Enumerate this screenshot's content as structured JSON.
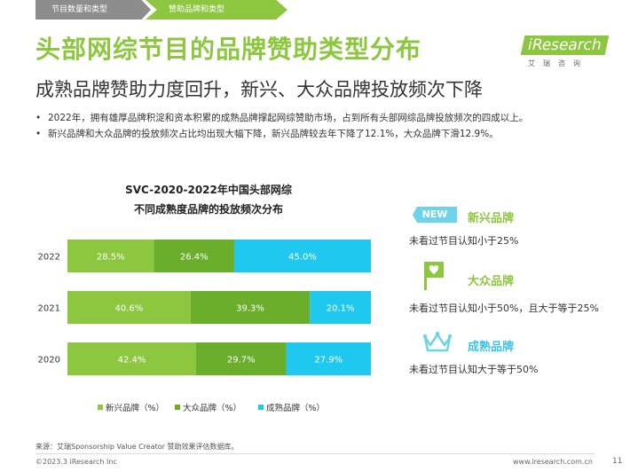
{
  "tabs": [
    "节目数量和类型",
    "赞助品牌和类型"
  ],
  "title": "头部网综节目的品牌赞助类型分布",
  "subtitle": "成熟品牌赞助力度回升，新兴、大众品牌投放频次下降",
  "logo": {
    "text": "iResearch",
    "sub": "艾瑞咨询"
  },
  "bullets": [
    "2022年，拥有雄厚品牌积淀和资本积累的成熟品牌撑起网综赞助市场，占到所有头部网综品牌投放频次的四成以上。",
    "新兴品牌和大众品牌的投放频次占比均出现大幅下降，新兴品牌较去年下降了12.1%，大众品牌下滑12.9%。"
  ],
  "chart_title_line1": "SVC-2020-2022年中国头部网综",
  "chart_title_line2": "不同成熟度品牌的投放频次分布",
  "chart_data": {
    "type": "bar",
    "orientation": "horizontal",
    "stacked": true,
    "normalized_to_100": true,
    "categories": [
      "2022",
      "2021",
      "2020"
    ],
    "series": [
      {
        "name": "新兴品牌（%）",
        "color": "#8dc63f",
        "values": [
          28.5,
          40.6,
          42.4
        ],
        "labels": [
          "28.5%",
          "40.6%",
          "42.4%"
        ]
      },
      {
        "name": "大众品牌（%）",
        "color": "#6aae2c",
        "values": [
          26.4,
          39.3,
          29.7
        ],
        "labels": [
          "26.4%",
          "39.3%",
          "29.7%"
        ]
      },
      {
        "name": "成熟品牌（%）",
        "color": "#1ec8ef",
        "values": [
          45.0,
          20.1,
          27.9
        ],
        "labels": [
          "45.0%",
          "20.1%",
          "27.9%"
        ]
      }
    ],
    "legend_position": "bottom",
    "grid": false
  },
  "right_panel": {
    "new_badge": "NEW",
    "items": [
      {
        "title": "新兴品牌",
        "desc": "未看过节目认知小于25%",
        "icon": "new-badge-icon"
      },
      {
        "title": "大众品牌",
        "desc": "未看过节目认知小于50%，且大于等于25%",
        "icon": "heart-flag-icon"
      },
      {
        "title": "成熟品牌",
        "desc": "未看过节目认知大于等于50%",
        "icon": "crown-icon"
      }
    ]
  },
  "source": "来源：艾瑞Sponsorship Value Creator 赞助效果评估数据库。",
  "copyright": "©2023.3 iResearch Inc",
  "site": "www.iresearch.com.cn",
  "page_number": "11"
}
